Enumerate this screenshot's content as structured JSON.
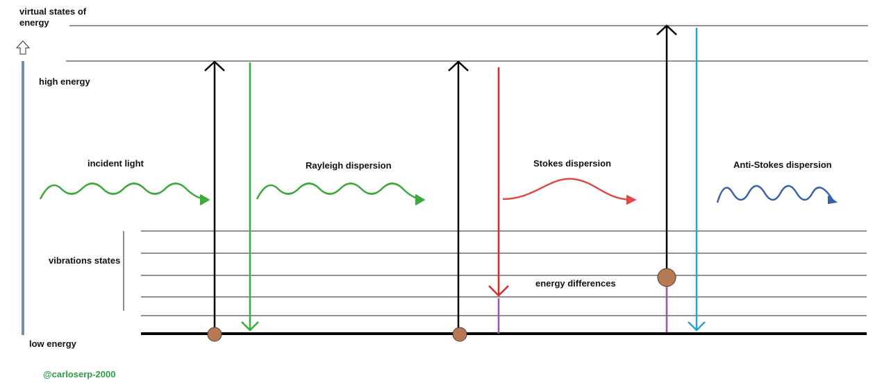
{
  "labels": {
    "virtual_states": "virtual states of energy",
    "high_energy": "high energy",
    "incident_light": "incident light",
    "rayleigh": "Rayleigh dispersion",
    "stokes": "Stokes dispersion",
    "anti_stokes": "Anti-Stokes dispersion",
    "vibrations": "vibrations states",
    "energy_differences": "energy differences",
    "low_energy": "low energy",
    "credit": "@carloserp-2000"
  }
}
